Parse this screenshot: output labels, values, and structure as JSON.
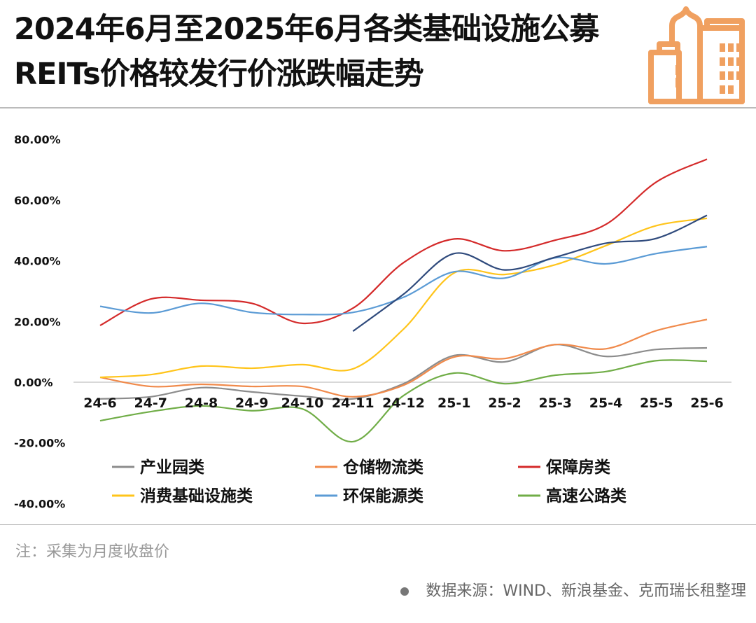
{
  "title": "2024年6月至2025年6月各类基础设施公募REITs价格较发行价涨跌幅走势",
  "note": "注：采集为月度收盘价",
  "source": "数据来源：WIND、新浪基金、克而瑞长租整理",
  "logo_icon": "city-buildings-icon",
  "logo_color": "#F0A060",
  "chart_data": {
    "type": "line",
    "title": "",
    "xlabel": "",
    "ylabel": "",
    "categories": [
      "24-6",
      "24-7",
      "24-8",
      "24-9",
      "24-10",
      "24-11",
      "24-12",
      "25-1",
      "25-2",
      "25-3",
      "25-4",
      "25-5",
      "25-6"
    ],
    "ylim": [
      -40,
      80
    ],
    "yticks": [
      80,
      60,
      40,
      20,
      0,
      -20,
      -40
    ],
    "ytick_labels": [
      "80.00%",
      "60.00%",
      "40.00%",
      "20.00%",
      "0.00%",
      "-20.00%",
      "-40.00%"
    ],
    "grid": false,
    "legend_position": "bottom",
    "series": [
      {
        "name": "产业园类",
        "color": "#8C8C8C",
        "values": [
          -5.5,
          -4.8,
          -1.8,
          -3.2,
          -4.6,
          -5.5,
          -0.5,
          8.8,
          6.7,
          12.4,
          8.5,
          10.8,
          11.3
        ]
      },
      {
        "name": "仓储物流类",
        "color": "#F08A4B",
        "values": [
          1.6,
          -1.4,
          -0.7,
          -1.4,
          -1.4,
          -4.8,
          -1.0,
          8.3,
          7.8,
          12.4,
          11.0,
          17.0,
          20.7
        ]
      },
      {
        "name": "保障房类",
        "color": "#D42A2A",
        "values": [
          18.7,
          27.4,
          27.0,
          26.0,
          19.4,
          24.4,
          39.4,
          47.2,
          43.3,
          46.8,
          52.0,
          66.0,
          73.5
        ]
      },
      {
        "name": "消费基础设施类",
        "color": "#FFC41A",
        "values": [
          1.6,
          2.5,
          5.3,
          4.6,
          5.8,
          4.4,
          17.5,
          36.0,
          35.5,
          38.7,
          45.0,
          51.6,
          54.0
        ]
      },
      {
        "name": "环保能源类",
        "color": "#5B9BD5",
        "values": [
          25.0,
          22.8,
          26.0,
          23.0,
          22.3,
          23.0,
          28.0,
          36.4,
          34.3,
          41.0,
          39.0,
          42.4,
          44.7
        ]
      },
      {
        "name": "高速公路类",
        "color": "#70AD47",
        "values": [
          -12.7,
          -9.7,
          -7.8,
          -9.4,
          -8.8,
          -19.6,
          -4.4,
          3.0,
          -0.5,
          2.3,
          3.5,
          7.1,
          6.9
        ]
      },
      {
        "color": "#2F4A7C",
        "values": [
          null,
          null,
          null,
          null,
          null,
          16.8,
          29.0,
          42.4,
          37.0,
          41.2,
          45.8,
          47.4,
          55.0
        ]
      }
    ]
  }
}
